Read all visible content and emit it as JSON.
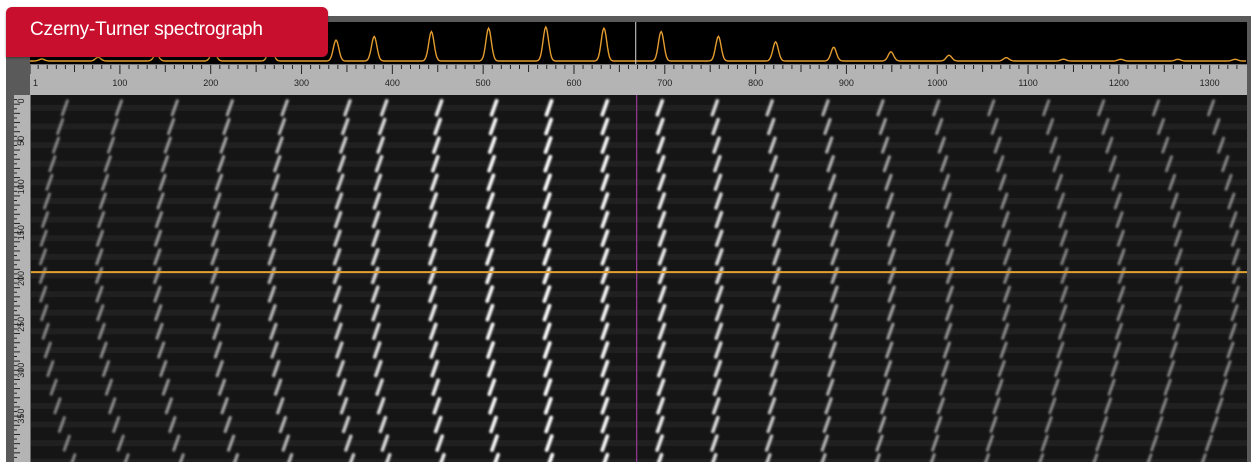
{
  "title": "Czerny-Turner spectrograph",
  "x_axis": {
    "tick_labels": [
      "1",
      "100",
      "200",
      "300",
      "400",
      "500",
      "600",
      "700",
      "800",
      "900",
      "1000",
      "1100",
      "1200",
      "1300"
    ],
    "range": [
      1,
      1340
    ]
  },
  "y_axis": {
    "tick_labels": [
      "0",
      "50",
      "100",
      "150",
      "200",
      "250",
      "300",
      "350"
    ],
    "range": [
      0,
      400
    ]
  },
  "colors": {
    "tab": "#c8102e",
    "spectrum_line": "#e39c2f",
    "row_cursor": "#e3a230",
    "column_cursor": "#b040b0",
    "image_background": "#151515",
    "ruler": "#b4b4b4"
  },
  "cursors": {
    "row_y": 193,
    "column_x": 668
  },
  "spectral_lines_x": [
    14,
    76,
    140,
    203,
    266,
    338,
    380,
    443,
    506,
    569,
    633,
    696,
    759,
    822,
    886,
    949,
    1013,
    1076,
    1139,
    1202,
    1265,
    1328
  ]
}
